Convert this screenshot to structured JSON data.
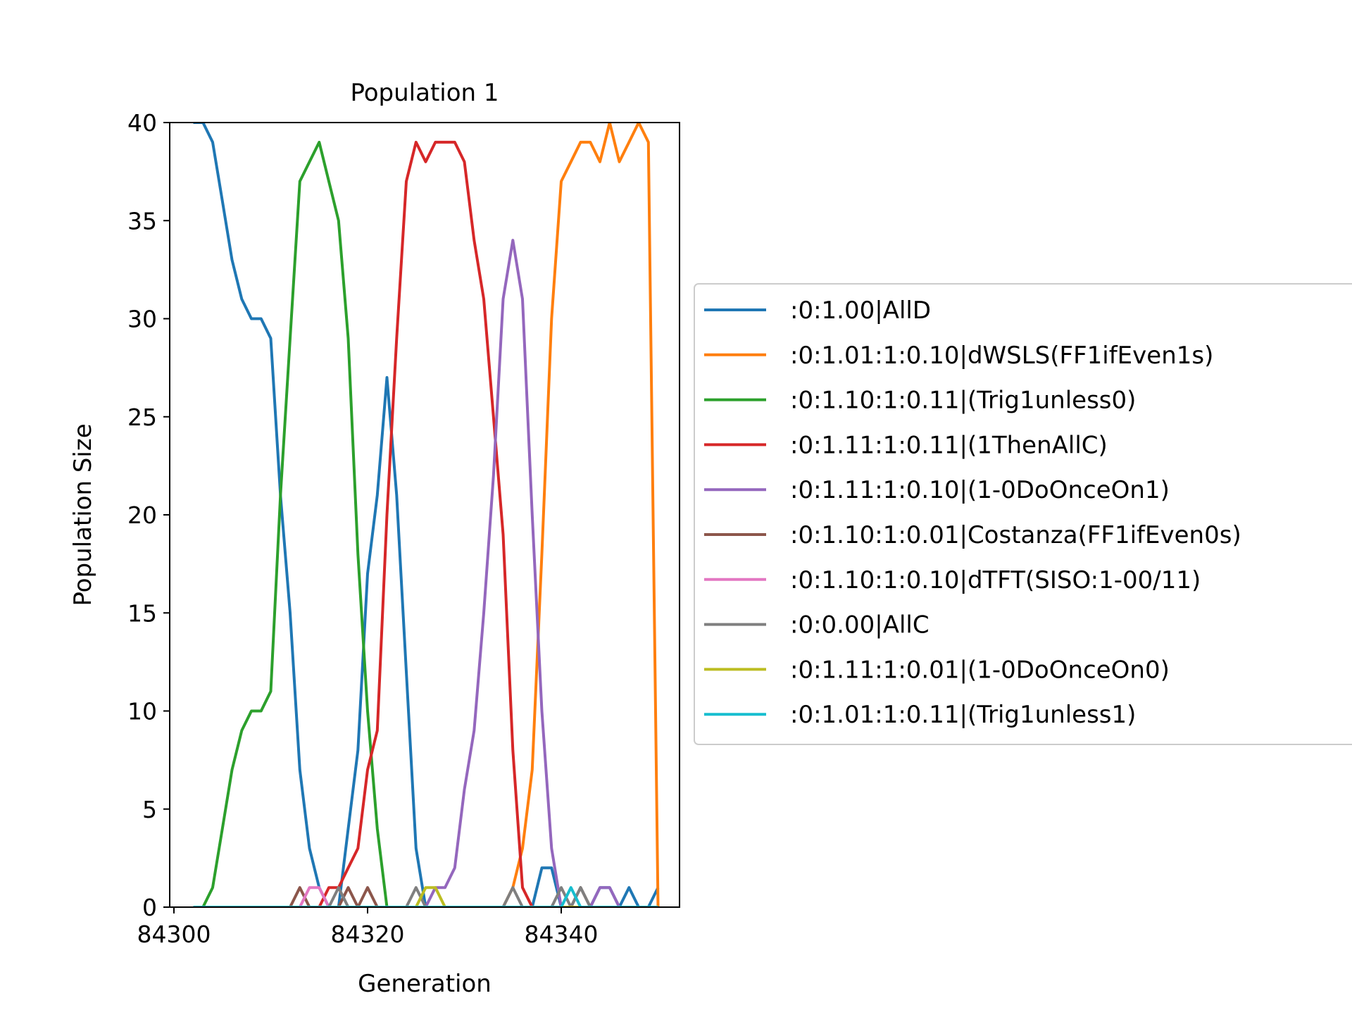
{
  "chart_data": {
    "type": "line",
    "title": "Population 1",
    "xlabel": "Generation",
    "ylabel": "Population Size",
    "xlim": [
      84300,
      84350
    ],
    "ylim": [
      0,
      40
    ],
    "xticks": [
      84300,
      84320,
      84340
    ],
    "yticks": [
      0,
      5,
      10,
      15,
      20,
      25,
      30,
      35,
      40
    ],
    "xtick_labels": [
      "84300",
      "84320",
      "84340"
    ],
    "ytick_labels": [
      "0",
      "5",
      "10",
      "15",
      "20",
      "25",
      "30",
      "35",
      "40"
    ],
    "grid": false,
    "legend_position": "right",
    "x": [
      84302,
      84303,
      84304,
      84305,
      84306,
      84307,
      84308,
      84309,
      84310,
      84311,
      84312,
      84313,
      84314,
      84315,
      84316,
      84317,
      84318,
      84319,
      84320,
      84321,
      84322,
      84323,
      84324,
      84325,
      84326,
      84327,
      84328,
      84329,
      84330,
      84331,
      84332,
      84333,
      84334,
      84335,
      84336,
      84337,
      84338,
      84339,
      84340,
      84341,
      84342,
      84343,
      84344,
      84345,
      84346,
      84347,
      84348,
      84349,
      84350
    ],
    "series": [
      {
        "name": ":0:1.00|AllD",
        "color": "#1f77b4",
        "values": [
          40,
          40,
          39,
          36,
          33,
          31,
          30,
          30,
          29,
          21,
          15,
          7,
          3,
          1,
          0,
          0,
          4,
          8,
          17,
          21,
          27,
          21,
          12,
          3,
          0,
          0,
          0,
          0,
          0,
          0,
          0,
          0,
          0,
          0,
          0,
          0,
          2,
          2,
          0,
          0,
          0,
          0,
          1,
          1,
          0,
          1,
          0,
          0,
          1
        ]
      },
      {
        "name": ":0:1.01:1:0.10|dWSLS(FF1ifEven1s)",
        "color": "#ff7f0e",
        "values": [
          0,
          0,
          0,
          0,
          0,
          0,
          0,
          0,
          0,
          0,
          0,
          0,
          0,
          0,
          0,
          0,
          0,
          0,
          0,
          0,
          0,
          0,
          0,
          0,
          0,
          0,
          0,
          0,
          0,
          0,
          0,
          0,
          0,
          1,
          3,
          7,
          18,
          30,
          37,
          38,
          39,
          39,
          38,
          40,
          38,
          39,
          40,
          39,
          0
        ]
      },
      {
        "name": ":0:1.10:1:0.11|(Trig1unless0)",
        "color": "#2ca02c",
        "values": [
          0,
          0,
          1,
          4,
          7,
          9,
          10,
          10,
          11,
          21,
          29,
          37,
          38,
          39,
          37,
          35,
          29,
          18,
          10,
          4,
          0,
          0,
          0,
          0,
          0,
          0,
          0,
          0,
          0,
          0,
          0,
          0,
          0,
          0,
          0,
          0,
          0,
          0,
          0,
          0,
          0,
          0,
          0,
          0,
          0,
          0,
          0,
          0,
          0
        ]
      },
      {
        "name": ":0:1.11:1:0.11|(1ThenAllC)",
        "color": "#d62728",
        "values": [
          0,
          0,
          0,
          0,
          0,
          0,
          0,
          0,
          0,
          0,
          0,
          0,
          0,
          0,
          1,
          1,
          2,
          3,
          7,
          9,
          20,
          29,
          37,
          39,
          38,
          39,
          39,
          39,
          38,
          34,
          31,
          25,
          19,
          8,
          1,
          0,
          0,
          0,
          0,
          0,
          0,
          0,
          0,
          0,
          0,
          0,
          0,
          0,
          0
        ]
      },
      {
        "name": ":0:1.11:1:0.10|(1-0DoOnceOn1)",
        "color": "#9467bd",
        "values": [
          0,
          0,
          0,
          0,
          0,
          0,
          0,
          0,
          0,
          0,
          0,
          0,
          0,
          0,
          0,
          0,
          0,
          0,
          0,
          0,
          0,
          0,
          0,
          0,
          0,
          1,
          1,
          2,
          6,
          9,
          15,
          22,
          31,
          34,
          31,
          20,
          10,
          3,
          0,
          0,
          0,
          0,
          1,
          1,
          0,
          0,
          0,
          0,
          0
        ]
      },
      {
        "name": ":0:1.10:1:0.01|Costanza(FF1ifEven0s)",
        "color": "#8c564b",
        "values": [
          0,
          0,
          0,
          0,
          0,
          0,
          0,
          0,
          0,
          0,
          0,
          1,
          0,
          0,
          0,
          0,
          1,
          0,
          1,
          0,
          0,
          0,
          0,
          0,
          0,
          0,
          0,
          0,
          0,
          0,
          0,
          0,
          0,
          0,
          0,
          0,
          0,
          0,
          0,
          0,
          1,
          0,
          0,
          0,
          0,
          0,
          0,
          0,
          0
        ]
      },
      {
        "name": ":0:1.10:1:0.10|dTFT(SISO:1-00/11)",
        "color": "#e377c2",
        "values": [
          0,
          0,
          0,
          0,
          0,
          0,
          0,
          0,
          0,
          0,
          0,
          0,
          1,
          1,
          0,
          0,
          0,
          0,
          0,
          0,
          0,
          0,
          0,
          0,
          0,
          0,
          0,
          0,
          0,
          0,
          0,
          0,
          0,
          0,
          0,
          0,
          0,
          0,
          0,
          0,
          0,
          0,
          0,
          0,
          0,
          0,
          0,
          0,
          0
        ]
      },
      {
        "name": ":0:0.00|AllC",
        "color": "#7f7f7f",
        "values": [
          0,
          0,
          0,
          0,
          0,
          0,
          0,
          0,
          0,
          0,
          0,
          0,
          0,
          0,
          0,
          1,
          0,
          0,
          0,
          0,
          0,
          0,
          0,
          1,
          0,
          0,
          0,
          0,
          0,
          0,
          0,
          0,
          0,
          1,
          0,
          0,
          0,
          0,
          1,
          0,
          1,
          0,
          0,
          0,
          0,
          0,
          0,
          0,
          0
        ]
      },
      {
        "name": ":0:1.11:1:0.01|(1-0DoOnceOn0)",
        "color": "#bcbd22",
        "values": [
          0,
          0,
          0,
          0,
          0,
          0,
          0,
          0,
          0,
          0,
          0,
          0,
          0,
          0,
          0,
          0,
          0,
          0,
          0,
          0,
          0,
          0,
          0,
          0,
          1,
          1,
          0,
          0,
          0,
          0,
          0,
          0,
          0,
          0,
          0,
          0,
          0,
          0,
          0,
          0,
          0,
          0,
          0,
          0,
          0,
          0,
          0,
          0,
          0
        ]
      },
      {
        "name": ":0:1.01:1:0.11|(Trig1unless1)",
        "color": "#17becf",
        "values": [
          0,
          0,
          0,
          0,
          0,
          0,
          0,
          0,
          0,
          0,
          0,
          0,
          0,
          0,
          0,
          0,
          0,
          0,
          0,
          0,
          0,
          0,
          0,
          0,
          0,
          0,
          0,
          0,
          0,
          0,
          0,
          0,
          0,
          0,
          0,
          0,
          0,
          0,
          0,
          1,
          0,
          0,
          0,
          0,
          0,
          0,
          0,
          0,
          0
        ]
      }
    ]
  }
}
